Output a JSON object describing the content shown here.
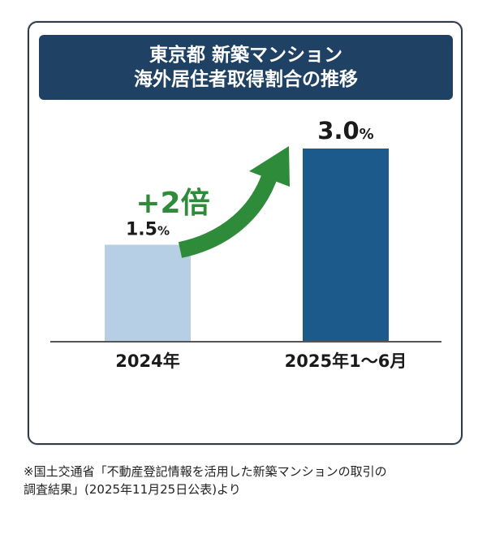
{
  "chart_data": {
    "type": "bar",
    "title_lines": [
      "東京都 新築マンション",
      "海外居住者取得割合の推移"
    ],
    "categories": [
      "2024年",
      "2025年1〜6月"
    ],
    "values": [
      1.5,
      3.0
    ],
    "value_labels": [
      {
        "number": "1.5",
        "unit": "%"
      },
      {
        "number": "3.0",
        "unit": "%"
      }
    ],
    "colors": [
      "#b6cfe4",
      "#1d5a8c"
    ],
    "ylim": [
      0,
      3.0
    ],
    "annotation": {
      "text": "+2倍",
      "color": "#2e8b3a"
    }
  },
  "footnote": {
    "line1": "※国土交通省「不動産登記情報を活用した新築マンションの取引の",
    "line2": "調査結果」(2025年11月25日公表)より"
  }
}
